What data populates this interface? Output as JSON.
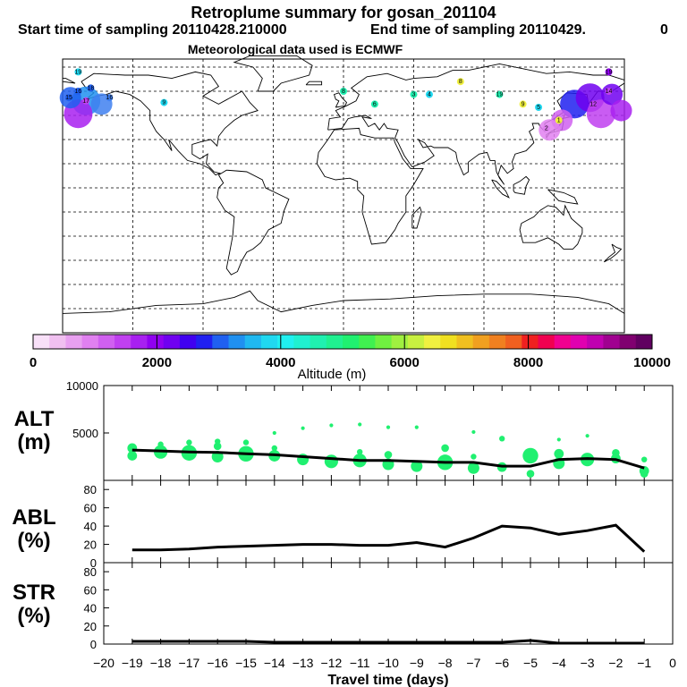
{
  "header": {
    "title": "Retroplume summary for gosan_201104",
    "start_label": "Start time of sampling 20110428.210000",
    "end_label": "End time of sampling 20110429.",
    "end_value": "0",
    "met_label": "Meteorological data used is ECMWF"
  },
  "colorbar": {
    "label": "Altitude (m)",
    "ticks": [
      "0",
      "2000",
      "4000",
      "6000",
      "8000",
      "10000"
    ],
    "range": [
      0,
      10000
    ],
    "colors": [
      "#f8e0f8",
      "#f0c0f0",
      "#e8a0f0",
      "#e080f0",
      "#d060f0",
      "#c040f0",
      "#a820f0",
      "#9000f0",
      "#7000f0",
      "#4000f0",
      "#2020f0",
      "#2060f0",
      "#2090f0",
      "#20b8f0",
      "#20d8f0",
      "#20f0f0",
      "#20f0d0",
      "#20f0b0",
      "#20f090",
      "#20f070",
      "#40f050",
      "#70f040",
      "#a0f040",
      "#c8f040",
      "#f0f040",
      "#f0e020",
      "#f0c020",
      "#f0a020",
      "#f08020",
      "#f06020",
      "#f02020",
      "#f00050",
      "#f00090",
      "#e000b0",
      "#c000b0",
      "#a00090",
      "#800070",
      "#600060"
    ]
  },
  "map": {
    "labels": [
      {
        "lon": -170,
        "lat": 72,
        "text": "19",
        "color": "#20d8f0"
      },
      {
        "lon": -162,
        "lat": 62,
        "text": "18",
        "color": "#2060f0"
      },
      {
        "lon": -170,
        "lat": 60,
        "text": "16",
        "color": "#2060f0"
      },
      {
        "lon": -150,
        "lat": 56,
        "text": "16",
        "color": "#4080f0"
      },
      {
        "lon": -176,
        "lat": 56,
        "text": "15",
        "color": "#2060f0"
      },
      {
        "lon": -165,
        "lat": 54,
        "text": "17",
        "color": "#c040f0"
      },
      {
        "lon": -115,
        "lat": 53,
        "text": "9",
        "color": "#20d8f0"
      },
      {
        "lon": 0,
        "lat": 60,
        "text": "8",
        "color": "#20f0b0"
      },
      {
        "lon": 20,
        "lat": 52,
        "text": "6",
        "color": "#20f0b0"
      },
      {
        "lon": 45,
        "lat": 58,
        "text": "3",
        "color": "#20f0b0"
      },
      {
        "lon": 55,
        "lat": 58,
        "text": "4",
        "color": "#20d8f0"
      },
      {
        "lon": 75,
        "lat": 66,
        "text": "8",
        "color": "#f0f040"
      },
      {
        "lon": 100,
        "lat": 58,
        "text": "19",
        "color": "#20f0b0"
      },
      {
        "lon": 115,
        "lat": 52,
        "text": "9",
        "color": "#f0f040"
      },
      {
        "lon": 125,
        "lat": 50,
        "text": "5",
        "color": "#20d8f0"
      },
      {
        "lon": 138,
        "lat": 42,
        "text": "1",
        "color": "#f0f040"
      },
      {
        "lon": 130,
        "lat": 37,
        "text": "2",
        "color": "#e080f0"
      },
      {
        "lon": 170,
        "lat": 72,
        "text": "19",
        "color": "#9000f0"
      },
      {
        "lon": 170,
        "lat": 60,
        "text": "14",
        "color": "#c040f0"
      },
      {
        "lon": 160,
        "lat": 52,
        "text": "12",
        "color": "#c040f0"
      }
    ],
    "blobs": [
      {
        "lon": 148,
        "lat": 52,
        "color": "#2020f0",
        "size": 3
      },
      {
        "lon": 158,
        "lat": 56,
        "color": "#7000f0",
        "size": 3
      },
      {
        "lon": 165,
        "lat": 46,
        "color": "#c040f0",
        "size": 3
      },
      {
        "lon": 140,
        "lat": 42,
        "color": "#d060f0",
        "size": 2
      },
      {
        "lon": 172,
        "lat": 58,
        "color": "#7000f0",
        "size": 2
      },
      {
        "lon": 178,
        "lat": 48,
        "color": "#a820f0",
        "size": 2
      },
      {
        "lon": 132,
        "lat": 36,
        "color": "#e080f0",
        "size": 2
      },
      {
        "lon": -165,
        "lat": 54,
        "color": "#2090f0",
        "size": 3
      },
      {
        "lon": -170,
        "lat": 46,
        "color": "#a820f0",
        "size": 3
      },
      {
        "lon": -175,
        "lat": 56,
        "color": "#2060f0",
        "size": 2
      },
      {
        "lon": -155,
        "lat": 52,
        "color": "#4080f0",
        "size": 2
      }
    ]
  },
  "chart_data": [
    {
      "type": "scatter+line",
      "panel": "ALT",
      "ylabel": "ALT\n(m)",
      "ylim": [
        0,
        10000
      ],
      "yticks": [
        "0",
        "5000",
        "10000"
      ],
      "xlim": [
        -20,
        0
      ],
      "line": {
        "x": [
          -19,
          -18,
          -17,
          -16,
          -15,
          -14,
          -13,
          -12,
          -11,
          -10,
          -9,
          -8,
          -7,
          -6,
          -5,
          -4,
          -3,
          -2,
          -1
        ],
        "y": [
          3200,
          3100,
          3000,
          2950,
          2800,
          2700,
          2500,
          2300,
          2100,
          2100,
          2000,
          1900,
          1900,
          1500,
          1500,
          2200,
          2300,
          2200,
          1300
        ]
      },
      "points": [
        {
          "x": -19,
          "y": 3400,
          "s": 4
        },
        {
          "x": -19,
          "y": 2600,
          "s": 4
        },
        {
          "x": -18,
          "y": 3000,
          "s": 6
        },
        {
          "x": -18,
          "y": 3800,
          "s": 2
        },
        {
          "x": -17,
          "y": 2900,
          "s": 7
        },
        {
          "x": -17,
          "y": 4000,
          "s": 2
        },
        {
          "x": -16,
          "y": 2500,
          "s": 5
        },
        {
          "x": -16,
          "y": 3600,
          "s": 3
        },
        {
          "x": -16,
          "y": 4100,
          "s": 2
        },
        {
          "x": -15,
          "y": 2800,
          "s": 7
        },
        {
          "x": -15,
          "y": 4000,
          "s": 2
        },
        {
          "x": -14,
          "y": 2600,
          "s": 5
        },
        {
          "x": -14,
          "y": 3400,
          "s": 2
        },
        {
          "x": -14,
          "y": 5000,
          "s": 1
        },
        {
          "x": -13,
          "y": 2200,
          "s": 5
        },
        {
          "x": -13,
          "y": 5500,
          "s": 1
        },
        {
          "x": -12,
          "y": 2000,
          "s": 6
        },
        {
          "x": -12,
          "y": 5800,
          "s": 1
        },
        {
          "x": -11,
          "y": 2100,
          "s": 6
        },
        {
          "x": -11,
          "y": 3000,
          "s": 2
        },
        {
          "x": -11,
          "y": 5900,
          "s": 1
        },
        {
          "x": -10,
          "y": 1700,
          "s": 5
        },
        {
          "x": -10,
          "y": 2700,
          "s": 3
        },
        {
          "x": -10,
          "y": 5600,
          "s": 1
        },
        {
          "x": -9,
          "y": 1500,
          "s": 5
        },
        {
          "x": -9,
          "y": 5600,
          "s": 1
        },
        {
          "x": -8,
          "y": 1900,
          "s": 7
        },
        {
          "x": -8,
          "y": 3400,
          "s": 3
        },
        {
          "x": -7,
          "y": 1300,
          "s": 5
        },
        {
          "x": -7,
          "y": 2500,
          "s": 2
        },
        {
          "x": -7,
          "y": 5100,
          "s": 1
        },
        {
          "x": -6,
          "y": 1400,
          "s": 4
        },
        {
          "x": -6,
          "y": 4400,
          "s": 2
        },
        {
          "x": -5,
          "y": 2600,
          "s": 7
        },
        {
          "x": -5,
          "y": 700,
          "s": 3
        },
        {
          "x": -4,
          "y": 2800,
          "s": 4
        },
        {
          "x": -4,
          "y": 1800,
          "s": 5
        },
        {
          "x": -4,
          "y": 4300,
          "s": 1
        },
        {
          "x": -3,
          "y": 2200,
          "s": 6
        },
        {
          "x": -3,
          "y": 4700,
          "s": 1
        },
        {
          "x": -2,
          "y": 2300,
          "s": 4
        },
        {
          "x": -2,
          "y": 2900,
          "s": 3
        },
        {
          "x": -1,
          "y": 2200,
          "s": 2
        },
        {
          "x": -1,
          "y": 1000,
          "s": 4
        },
        {
          "x": -1,
          "y": 700,
          "s": 3
        }
      ]
    },
    {
      "type": "line",
      "panel": "ABL",
      "ylabel": "ABL\n(%)",
      "ylim": [
        0,
        90
      ],
      "yticks": [
        "0",
        "20",
        "40",
        "60",
        "80"
      ],
      "xlim": [
        -20,
        0
      ],
      "x": [
        -19,
        -18,
        -17,
        -16,
        -15,
        -14,
        -13,
        -12,
        -11,
        -10,
        -9,
        -8,
        -7,
        -6,
        -5,
        -4,
        -3,
        -2,
        -1
      ],
      "y": [
        14,
        14,
        15,
        17,
        18,
        19,
        20,
        20,
        19,
        19,
        22,
        17,
        27,
        40,
        38,
        31,
        35,
        41,
        12
      ]
    },
    {
      "type": "line",
      "panel": "STR",
      "ylabel": "STR\n(%)",
      "ylim": [
        0,
        90
      ],
      "yticks": [
        "0",
        "20",
        "40",
        "60",
        "80"
      ],
      "xlim": [
        -20,
        0
      ],
      "xlabel": "Travel time (days)",
      "xticks": [
        "−20",
        "−19",
        "−18",
        "−17",
        "−16",
        "−15",
        "−14",
        "−13",
        "−12",
        "−11",
        "−10",
        "−9",
        "−8",
        "−7",
        "−6",
        "−5",
        "−4",
        "−3",
        "−2",
        "−1",
        "0"
      ],
      "x": [
        -19,
        -18,
        -17,
        -16,
        -15,
        -14,
        -13,
        -12,
        -11,
        -10,
        -9,
        -8,
        -7,
        -6,
        -5,
        -4,
        -3,
        -2,
        -1
      ],
      "y": [
        3,
        3,
        3,
        3,
        3,
        2,
        2,
        2,
        2,
        2,
        2,
        2,
        2,
        2,
        4,
        1,
        1,
        1,
        1
      ]
    }
  ],
  "panel_labels": {
    "alt_line1": "ALT",
    "alt_line2": "(m)",
    "abl_line1": "ABL",
    "abl_line2": "(%)",
    "str_line1": "STR",
    "str_line2": "(%)"
  }
}
